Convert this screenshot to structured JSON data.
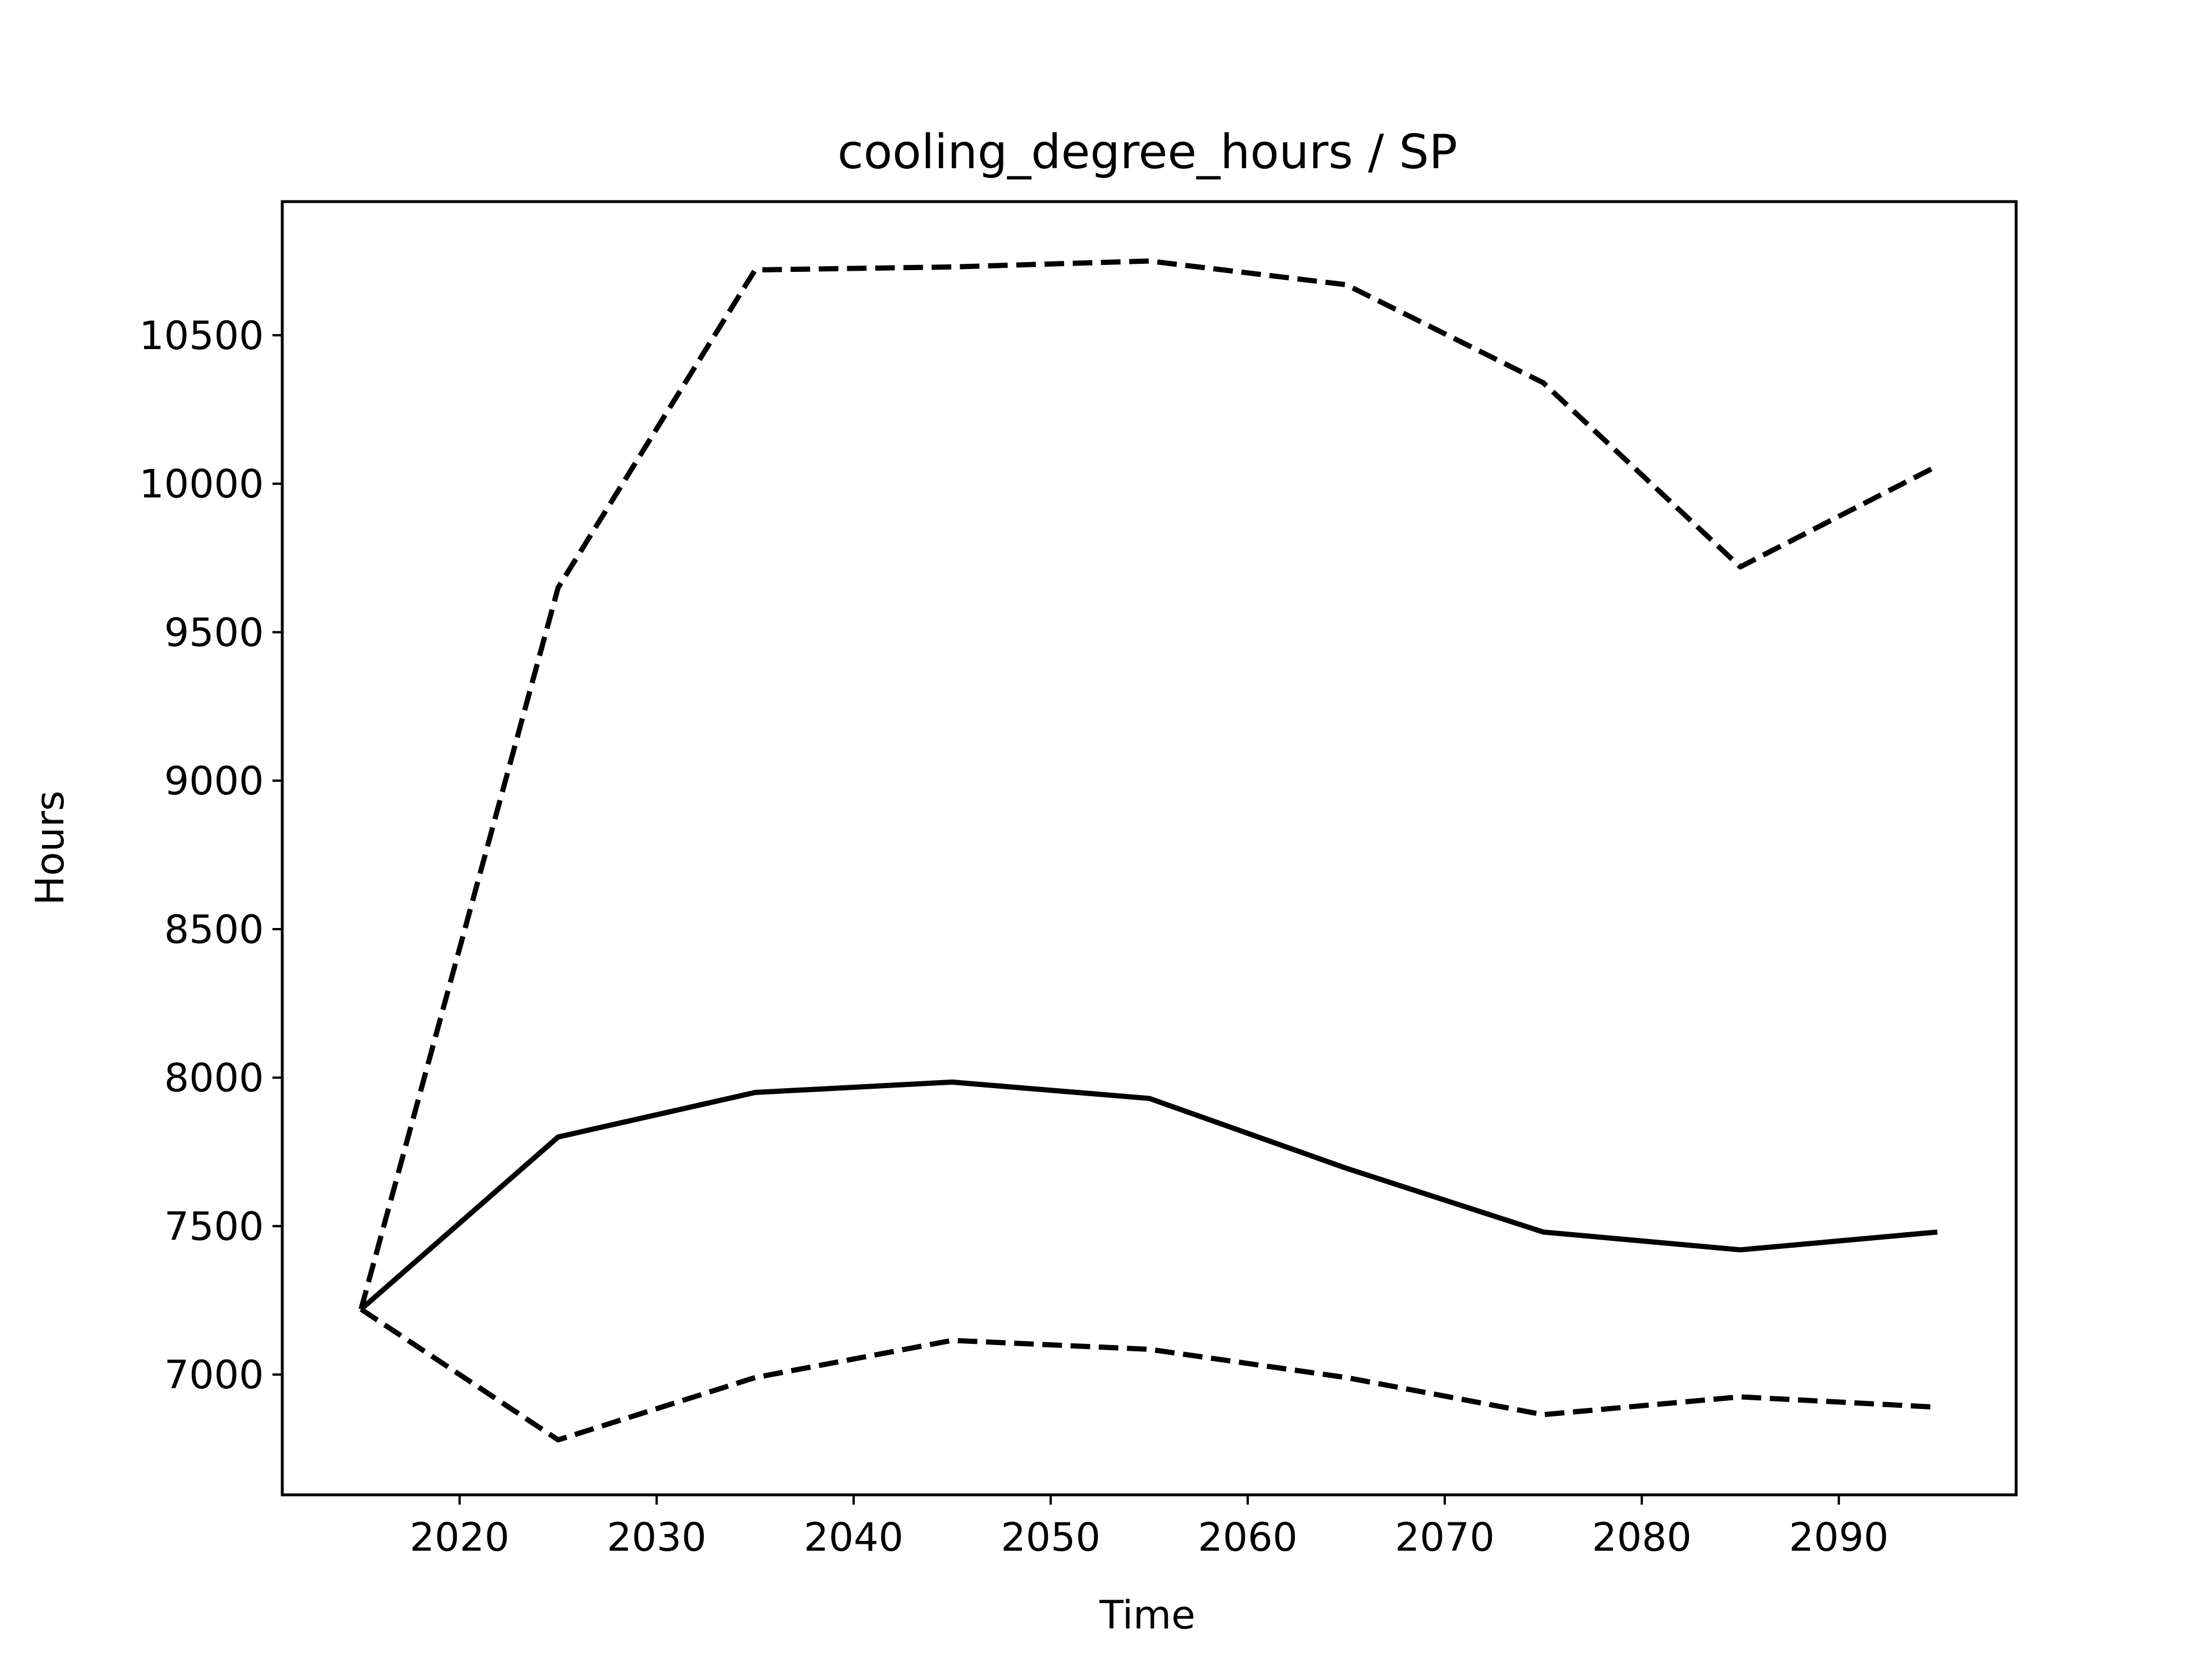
{
  "chart_data": {
    "type": "line",
    "title": "cooling_degree_hours / SP",
    "xlabel": "Time",
    "ylabel": "Hours",
    "x": [
      2015,
      2025,
      2035,
      2045,
      2055,
      2065,
      2075,
      2085,
      2095
    ],
    "series": [
      {
        "style": "solid",
        "values": [
          7220,
          7800,
          7950,
          7985,
          7930,
          7695,
          7480,
          7420,
          7480
        ]
      },
      {
        "style": "dashed",
        "values": [
          7220,
          9650,
          10720,
          10730,
          10750,
          10670,
          10340,
          9720,
          10060
        ]
      },
      {
        "style": "dashed",
        "values": [
          7220,
          6780,
          6990,
          7115,
          7085,
          6990,
          6865,
          6925,
          6890
        ]
      }
    ],
    "xlim": [
      2011,
      2099
    ],
    "ylim": [
      6595,
      10950
    ],
    "xticks": [
      2020,
      2030,
      2040,
      2050,
      2060,
      2070,
      2080,
      2090
    ],
    "yticks": [
      7000,
      7500,
      8000,
      8500,
      9000,
      9500,
      10000,
      10500
    ],
    "grid": false,
    "line_color": "#000000"
  }
}
